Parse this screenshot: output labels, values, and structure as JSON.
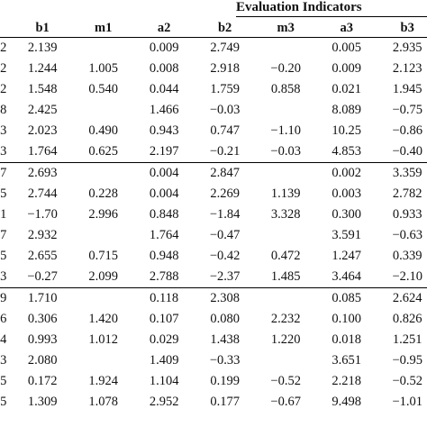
{
  "header": {
    "title": "Evaluation Indicators",
    "columns": [
      "",
      "b1",
      "m1",
      "a2",
      "b2",
      "m3",
      "a3",
      "b3"
    ]
  },
  "groups": [
    {
      "rows": [
        [
          "2",
          "2.139",
          "",
          "0.009",
          "2.749",
          "",
          "0.005",
          "2.935"
        ],
        [
          "2",
          "1.244",
          "1.005",
          "0.008",
          "2.918",
          "−0.20",
          "0.009",
          "2.123"
        ],
        [
          "2",
          "1.548",
          "0.540",
          "0.044",
          "1.759",
          "0.858",
          "0.021",
          "1.945"
        ],
        [
          "8",
          "2.425",
          "",
          "1.466",
          "−0.03",
          "",
          "8.089",
          "−0.75"
        ],
        [
          "3",
          "2.023",
          "0.490",
          "0.943",
          "0.747",
          "−1.10",
          "10.25",
          "−0.86"
        ],
        [
          "3",
          "1.764",
          "0.625",
          "2.197",
          "−0.21",
          "−0.03",
          "4.853",
          "−0.40"
        ]
      ]
    },
    {
      "rows": [
        [
          "7",
          "2.693",
          "",
          "0.004",
          "2.847",
          "",
          "0.002",
          "3.359"
        ],
        [
          "5",
          "2.744",
          "0.228",
          "0.004",
          "2.269",
          "1.139",
          "0.003",
          "2.782"
        ],
        [
          "1",
          "−1.70",
          "2.996",
          "0.848",
          "−1.84",
          "3.328",
          "0.300",
          "0.933"
        ],
        [
          "7",
          "2.932",
          "",
          "1.764",
          "−0.47",
          "",
          "3.591",
          "−0.63"
        ],
        [
          "5",
          "2.655",
          "0.715",
          "0.948",
          "−0.42",
          "0.472",
          "1.247",
          "0.339"
        ],
        [
          "3",
          "−0.27",
          "2.099",
          "2.788",
          "−2.37",
          "1.485",
          "3.464",
          "−2.10"
        ]
      ]
    },
    {
      "rows": [
        [
          "9",
          "1.710",
          "",
          "0.118",
          "2.308",
          "",
          "0.085",
          "2.624"
        ],
        [
          "6",
          "0.306",
          "1.420",
          "0.107",
          "0.080",
          "2.232",
          "0.100",
          "0.826"
        ],
        [
          "4",
          "0.993",
          "1.012",
          "0.029",
          "1.438",
          "1.220",
          "0.018",
          "1.251"
        ],
        [
          "3",
          "2.080",
          "",
          "1.409",
          "−0.33",
          "",
          "3.651",
          "−0.95"
        ],
        [
          "5",
          "0.172",
          "1.924",
          "1.104",
          "0.199",
          "−0.52",
          "2.218",
          "−0.52"
        ],
        [
          "5",
          "1.309",
          "1.078",
          "2.952",
          "0.177",
          "−0.67",
          "9.498",
          "−1.01"
        ]
      ]
    }
  ]
}
